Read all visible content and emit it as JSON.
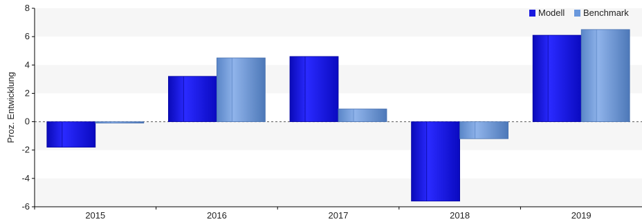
{
  "chart_data": {
    "type": "bar",
    "categories": [
      "2015",
      "2016",
      "2017",
      "2018",
      "2019"
    ],
    "series": [
      {
        "name": "Modell",
        "values": [
          -1.8,
          3.2,
          4.6,
          -5.6,
          6.1
        ],
        "color": "#1a1adf"
      },
      {
        "name": "Benchmark",
        "values": [
          -0.1,
          4.5,
          0.9,
          -1.2,
          6.5
        ],
        "color": "#6a98dc"
      }
    ],
    "ylabel": "Proz. Entwicklung",
    "xlabel": "",
    "title": "",
    "ylim": [
      -6,
      8
    ],
    "yticks": [
      8,
      6,
      4,
      2,
      0,
      -2,
      -4,
      -6
    ],
    "grid": "alternating-bands",
    "legend_position": "top-right",
    "zero_line": "dashed"
  }
}
